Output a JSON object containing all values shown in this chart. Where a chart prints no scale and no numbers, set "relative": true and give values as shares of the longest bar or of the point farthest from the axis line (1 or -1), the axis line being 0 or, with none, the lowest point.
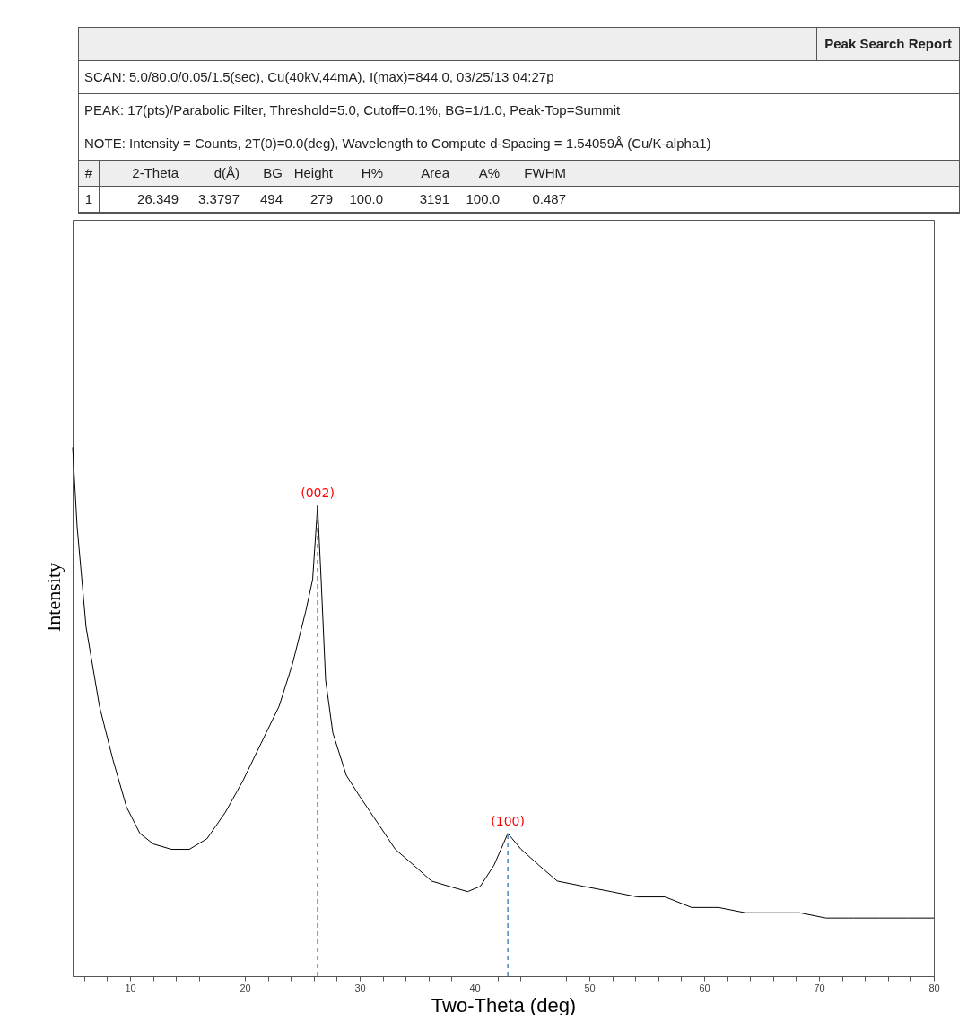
{
  "chart_data": {
    "type": "line",
    "relative": true,
    "xlabel": "Two-Theta (deg)",
    "ylabel": "Intensity",
    "xlim": [
      5,
      80
    ],
    "xticks": [
      {
        "value": 6,
        "label": null
      },
      {
        "value": 8,
        "label": null
      },
      10,
      {
        "value": 12,
        "label": null
      },
      {
        "value": 14,
        "label": null
      },
      {
        "value": 16,
        "label": null
      },
      {
        "value": 18,
        "label": null
      },
      20,
      {
        "value": 22,
        "label": null
      },
      {
        "value": 24,
        "label": null
      },
      {
        "value": 26,
        "label": null
      },
      {
        "value": 28,
        "label": null
      },
      30,
      {
        "value": 32,
        "label": null
      },
      {
        "value": 34,
        "label": null
      },
      {
        "value": 36,
        "label": null
      },
      {
        "value": 38,
        "label": null
      },
      40,
      {
        "value": 42,
        "label": null
      },
      {
        "value": 44,
        "label": null
      },
      {
        "value": 46,
        "label": null
      },
      {
        "value": 48,
        "label": null
      },
      50,
      {
        "value": 52,
        "label": null
      },
      {
        "value": 54,
        "label": null
      },
      {
        "value": 56,
        "label": null
      },
      {
        "value": 58,
        "label": null
      },
      60,
      {
        "value": 62,
        "label": null
      },
      {
        "value": 64,
        "label": null
      },
      {
        "value": 66,
        "label": null
      },
      {
        "value": 68,
        "label": null
      },
      70,
      {
        "value": 72,
        "label": null
      },
      {
        "value": 74,
        "label": null
      },
      {
        "value": 76,
        "label": null
      },
      {
        "value": 78,
        "label": null
      },
      80
    ],
    "x": [
      5.0,
      5.39,
      6.17,
      7.34,
      8.5,
      9.69,
      10.86,
      12.03,
      13.6,
      15.16,
      16.7,
      18.3,
      19.84,
      21.4,
      22.97,
      24.14,
      25.3,
      25.9,
      26.33,
      26.64,
      27.03,
      27.66,
      28.83,
      30.0,
      31.56,
      33.1,
      34.7,
      36.25,
      37.8,
      39.4,
      40.5,
      41.7,
      42.9,
      44.06,
      45.6,
      47.2,
      49.5,
      51.9,
      54.2,
      56.6,
      58.9,
      61.25,
      63.6,
      65.9,
      68.3,
      70.6,
      73.0,
      75.3,
      77.7,
      80.0
    ],
    "series": [
      {
        "color": "#000000",
        "values": [
          1.0,
          0.85,
          0.66,
          0.51,
          0.41,
          0.32,
          0.27,
          0.25,
          0.24,
          0.24,
          0.26,
          0.31,
          0.37,
          0.44,
          0.51,
          0.59,
          0.69,
          0.75,
          0.89,
          0.75,
          0.56,
          0.46,
          0.38,
          0.34,
          0.29,
          0.24,
          0.21,
          0.18,
          0.17,
          0.16,
          0.17,
          0.21,
          0.27,
          0.24,
          0.21,
          0.18,
          0.17,
          0.16,
          0.15,
          0.15,
          0.13,
          0.13,
          0.12,
          0.12,
          0.12,
          0.11,
          0.11,
          0.11,
          0.11,
          0.11
        ]
      }
    ],
    "ref_lines": [
      {
        "axis": "x",
        "value": 26.349,
        "color": "#333333",
        "line_style": "dashed"
      },
      {
        "axis": "x",
        "value": 42.9,
        "color": "#4a86c8",
        "line_style": "dashed"
      }
    ],
    "annotations": [
      {
        "text": "(002)",
        "x": 26.33,
        "y": 0.89
      },
      {
        "text": "(100)",
        "x": 42.9,
        "y": 0.27
      },
      "Peak Search Report",
      "SCAN: 5.0/80.0/0.05/1.5(sec), Cu(40kV,44mA), I(max)=844.0, 03/25/13 04:27p",
      "PEAK: 17(pts)/Parabolic Filter, Threshold=5.0, Cutoff=0.1%, BG=1/1.0, Peak-Top=Summit",
      "NOTE: Intensity = Counts, 2T(0)=0.0(deg), Wavelength to Compute d-Spacing = 1.54059Å (Cu/K-alpha1)",
      "#",
      "2-Theta",
      "d(Å)",
      "BG",
      "Height",
      "H%",
      "Area",
      "A%",
      "FWHM",
      "1",
      "26.349",
      "3.3797",
      "494",
      "279",
      "100.0",
      "3191",
      "100.0",
      "0.487"
    ],
    "grid": false,
    "marker": "none",
    "line_style": "solid"
  }
}
